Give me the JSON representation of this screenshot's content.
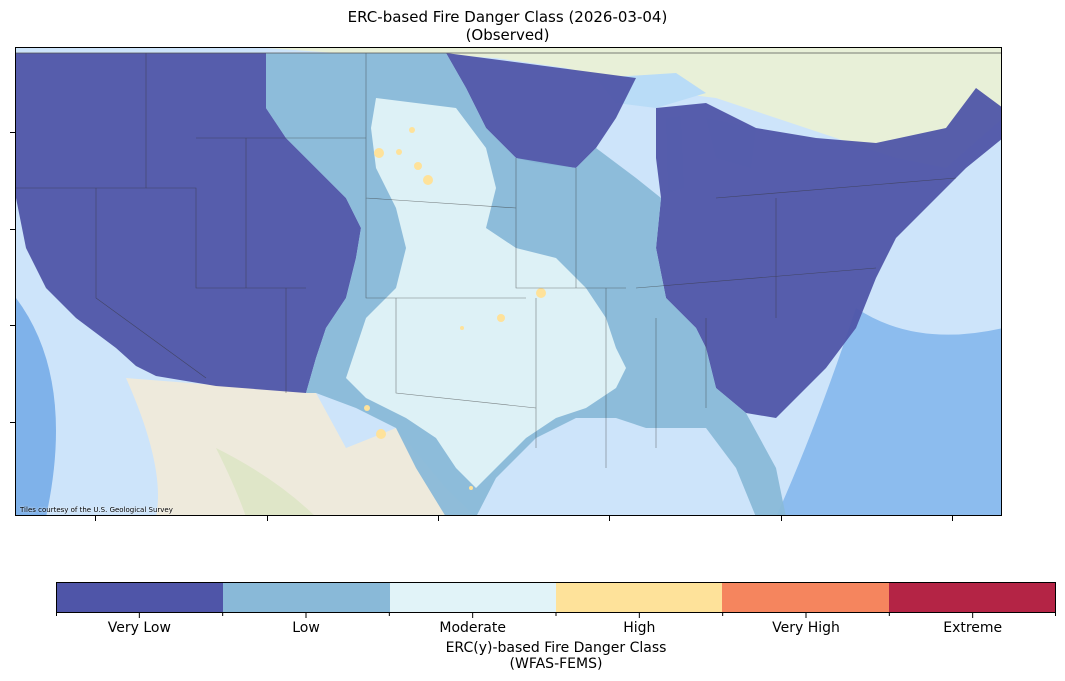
{
  "title": {
    "line1": "ERC-based Fire Danger Class (2026-03-04)",
    "line2": "(Observed)"
  },
  "map": {
    "attribution": "Tiles courtesy of the U.S. Geological Survey",
    "basemap": "USGS topographic tiles",
    "overlay": "ERC-based fire danger class over contiguous United States"
  },
  "colorbar": {
    "title_line1": "ERC(y)-based Fire Danger Class",
    "title_line2": "(WFAS-FEMS)",
    "classes": [
      {
        "label": "Very Low",
        "color": "#4f55a8"
      },
      {
        "label": "Low",
        "color": "#89b9d8"
      },
      {
        "label": "Moderate",
        "color": "#e1f3f8"
      },
      {
        "label": "High",
        "color": "#fee29a"
      },
      {
        "label": "Very High",
        "color": "#f5855e"
      },
      {
        "label": "Extreme",
        "color": "#b42445"
      }
    ]
  }
}
